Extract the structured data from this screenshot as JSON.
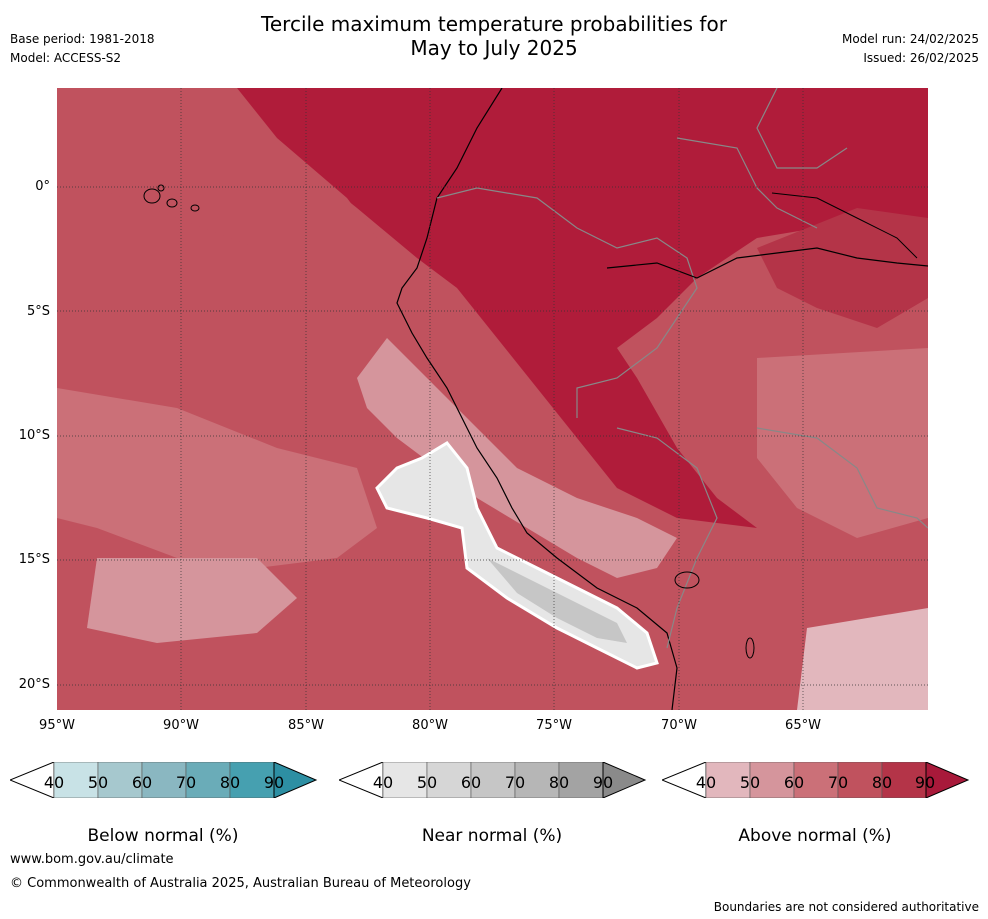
{
  "title_line1": "Tercile maximum temperature probabilities for",
  "title_line2": "May to July 2025",
  "base_period": "Base period: 1981-2018",
  "model": "Model: ACCESS-S2",
  "model_run": "Model run: 24/02/2025",
  "issued": "Issued: 26/02/2025",
  "lat_labels": [
    "0°",
    "5°S",
    "10°S",
    "15°S",
    "20°S"
  ],
  "lon_labels": [
    "95°W",
    "90°W",
    "85°W",
    "80°W",
    "75°W",
    "70°W",
    "65°W"
  ],
  "legends": [
    {
      "title": "Below normal (%)",
      "ticks": [
        "40",
        "50",
        "60",
        "70",
        "80",
        "90"
      ],
      "colors": [
        "#ffffff",
        "#c8e2e6",
        "#a6c8ce",
        "#8ab7c1",
        "#6aacb8",
        "#46a0b0",
        "#2d8fa3"
      ]
    },
    {
      "title": "Near normal (%)",
      "ticks": [
        "40",
        "50",
        "60",
        "70",
        "80",
        "90"
      ],
      "colors": [
        "#ffffff",
        "#e6e6e6",
        "#d6d6d6",
        "#c6c6c6",
        "#b6b6b6",
        "#a3a3a3",
        "#8a8a8a"
      ]
    },
    {
      "title": "Above normal (%)",
      "ticks": [
        "40",
        "50",
        "60",
        "70",
        "80",
        "90"
      ],
      "colors": [
        "#ffffff",
        "#e2b7bd",
        "#d5959c",
        "#cb7078",
        "#c0525e",
        "#b43448",
        "#a8193a"
      ]
    }
  ],
  "url": "www.bom.gov.au/climate",
  "copyright": "© Commonwealth of Australia 2025, Australian Bureau of Meteorology",
  "disclaimer": "Boundaries are not considered authoritative"
}
